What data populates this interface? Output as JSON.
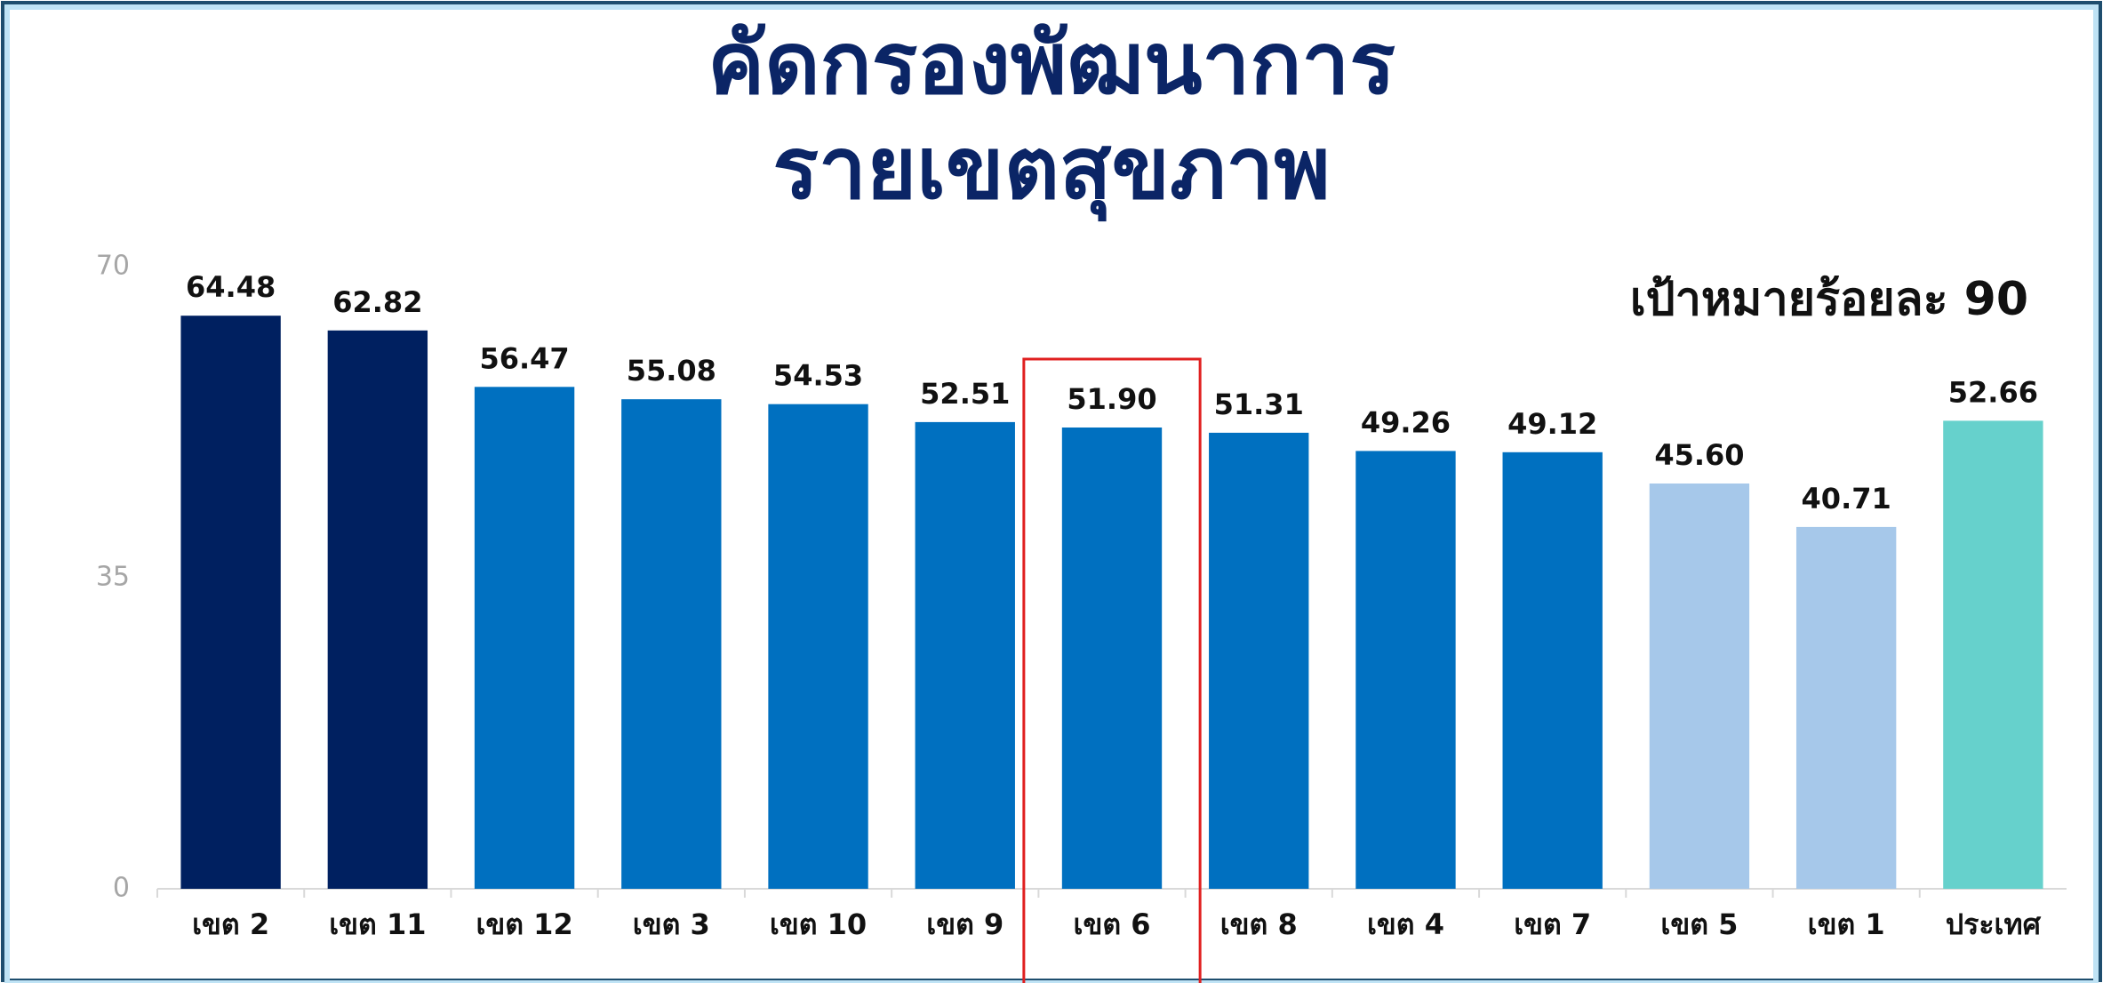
{
  "chart_data": {
    "type": "bar",
    "title": [
      "คัดกรองพัฒนาการ",
      "รายเขตสุขภาพ"
    ],
    "annotation": "เป้าหมายร้อยละ 90",
    "categories": [
      "เขต 2",
      "เขต 11",
      "เขต 12",
      "เขต 3",
      "เขต 10",
      "เขต 9",
      "เขต 6",
      "เขต 8",
      "เขต 4",
      "เขต 7",
      "เขต 5",
      "เขต 1",
      "ประเทศ"
    ],
    "values": [
      64.48,
      62.82,
      56.47,
      55.08,
      54.53,
      52.51,
      51.9,
      51.31,
      49.26,
      49.12,
      45.6,
      40.71,
      52.66
    ],
    "value_labels": [
      "64.48",
      "62.82",
      "56.47",
      "55.08",
      "54.53",
      "52.51",
      "51.90",
      "51.31",
      "49.26",
      "49.12",
      "45.60",
      "40.71",
      "52.66"
    ],
    "colors": [
      "#002060",
      "#002060",
      "#0070c0",
      "#0070c0",
      "#0070c0",
      "#0070c0",
      "#0070c0",
      "#0070c0",
      "#0070c0",
      "#0070c0",
      "#a6c8ea",
      "#a6c8ea",
      "#66d1cc"
    ],
    "highlight": "เขต 6",
    "ylim": [
      0,
      70
    ],
    "yticks": [
      0,
      35,
      70
    ],
    "grid": false
  }
}
